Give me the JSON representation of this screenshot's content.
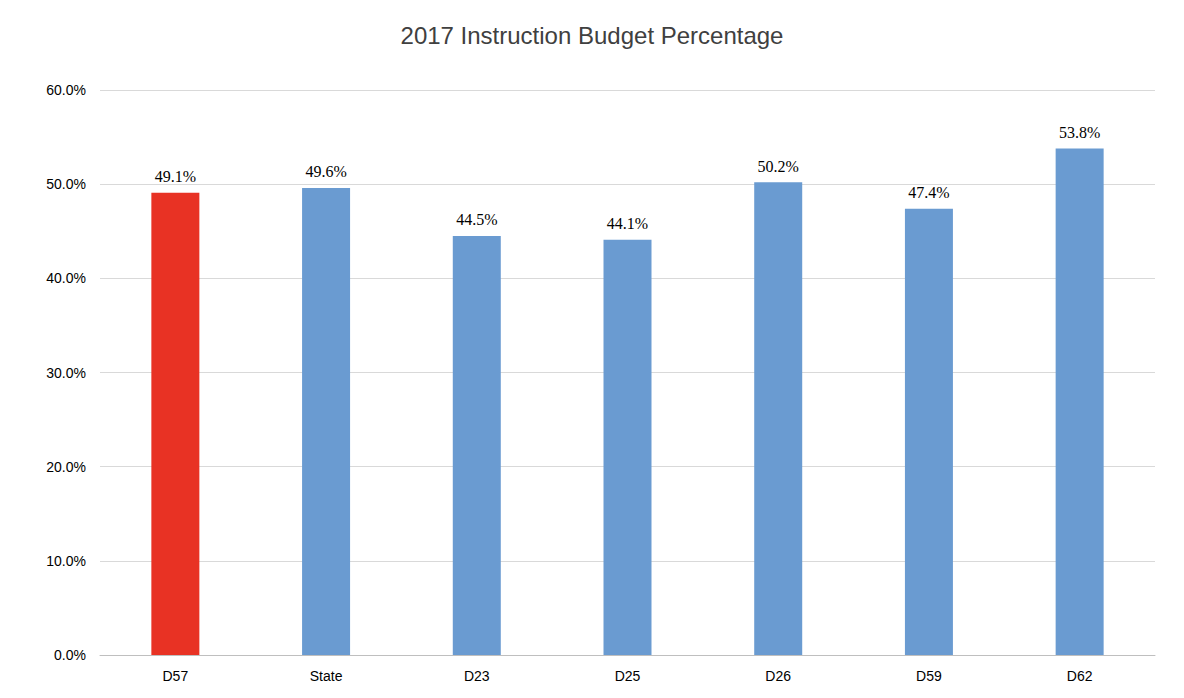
{
  "chart_data": {
    "type": "bar",
    "title": "2017 Instruction Budget Percentage",
    "categories": [
      "D57",
      "State",
      "D23",
      "D25",
      "D26",
      "D59",
      "D62"
    ],
    "values": [
      49.1,
      49.6,
      44.5,
      44.1,
      50.2,
      47.4,
      53.8
    ],
    "value_labels": [
      "49.1%",
      "49.6%",
      "44.5%",
      "44.1%",
      "50.2%",
      "47.4%",
      "53.8%"
    ],
    "colors": [
      "#e83224",
      "#6a9bd1",
      "#6a9bd1",
      "#6a9bd1",
      "#6a9bd1",
      "#6a9bd1",
      "#6a9bd1"
    ],
    "ylim": [
      0,
      60
    ],
    "yticks": [
      {
        "value": 0,
        "label": "0.0%"
      },
      {
        "value": 10,
        "label": "10.0%"
      },
      {
        "value": 20,
        "label": "20.0%"
      },
      {
        "value": 30,
        "label": "30.0%"
      },
      {
        "value": 40,
        "label": "40.0%"
      },
      {
        "value": 50,
        "label": "50.0%"
      },
      {
        "value": 60,
        "label": "60.0%"
      }
    ],
    "grid": true,
    "data_labels": true
  }
}
